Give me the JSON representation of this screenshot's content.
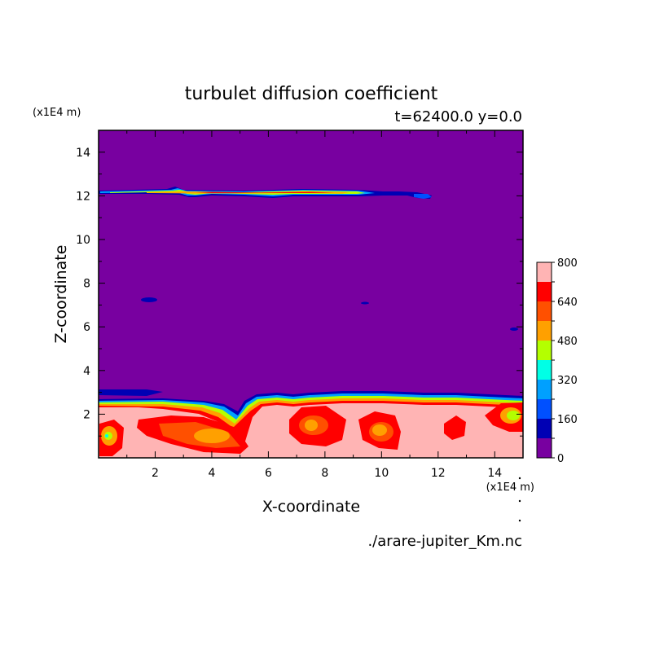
{
  "chart_data": {
    "type": "heatmap",
    "title": "turbulet diffusion coefficient",
    "subtitle": "t=62400.0 y=0.0",
    "xlabel": "X-coordinate",
    "ylabel": "Z-coordinate",
    "x_unit": "(x1E4 m)",
    "y_unit": "(x1E4 m)",
    "xlim": [
      0,
      15
    ],
    "ylim": [
      0,
      15
    ],
    "x_ticks": [
      2,
      4,
      6,
      8,
      10,
      12,
      14
    ],
    "y_ticks": [
      2,
      4,
      6,
      8,
      10,
      12,
      14
    ],
    "colorbar": {
      "levels": [
        0,
        80,
        160,
        240,
        320,
        400,
        480,
        560,
        640,
        720,
        800
      ],
      "tick_labels": [
        "0",
        "160",
        "320",
        "480",
        "640",
        "800"
      ],
      "colors": [
        "#7800a0",
        "#0000b4",
        "#0050ff",
        "#00a0ff",
        "#00ffe6",
        "#b4ff00",
        "#ffa000",
        "#ff5000",
        "#ff0000",
        "#ffb4b4"
      ]
    },
    "regions": [
      {
        "name": "lower-turbulent-layer",
        "level_index": 9,
        "x_range": [
          0,
          15
        ],
        "z_range": [
          0,
          2.9
        ]
      },
      {
        "name": "upper-turbulent-band",
        "level_index": 6,
        "x_range": [
          0,
          10.2
        ],
        "z_range": [
          11.9,
          12.3
        ]
      }
    ],
    "cores": [
      {
        "x": 0.5,
        "z": 1.0,
        "level_index": 6
      },
      {
        "x": 3.5,
        "z": 1.2,
        "level_index": 6
      },
      {
        "x": 7.3,
        "z": 1.5,
        "level_index": 6
      },
      {
        "x": 10.0,
        "z": 1.2,
        "level_index": 6
      },
      {
        "x": 14.5,
        "z": 1.9,
        "level_index": 5
      }
    ]
  },
  "footer": {
    "filename": "./arare-jupiter_Km.nc"
  }
}
